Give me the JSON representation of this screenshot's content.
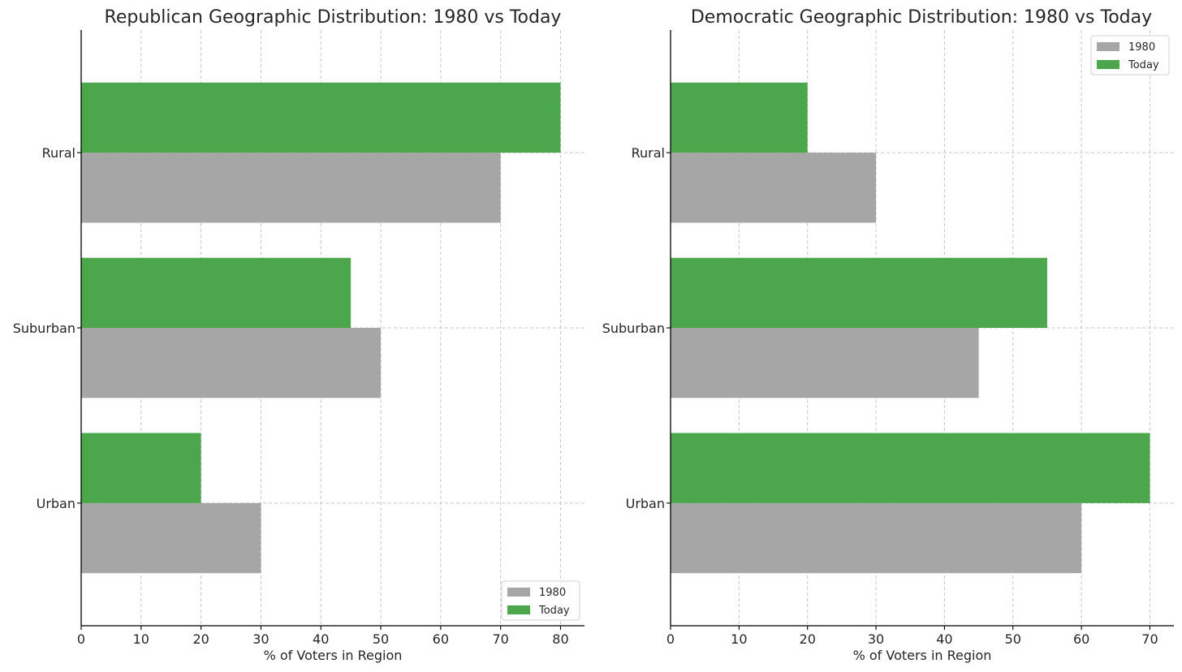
{
  "chart_data": [
    {
      "type": "bar",
      "orientation": "horizontal",
      "title": "Republican Geographic Distribution: 1980 vs Today",
      "xlabel": "% of Voters in Region",
      "ylabel": "",
      "categories": [
        "Urban",
        "Suburban",
        "Rural"
      ],
      "series": [
        {
          "name": "1980",
          "color": "#a6a6a6",
          "values": [
            30,
            50,
            70
          ]
        },
        {
          "name": "Today",
          "color": "#4ca64c",
          "values": [
            20,
            45,
            80
          ]
        }
      ],
      "xlim": [
        0,
        84
      ],
      "xticks": [
        0,
        10,
        20,
        30,
        40,
        50,
        60,
        70,
        80
      ],
      "grid": true,
      "legend": "lower-right"
    },
    {
      "type": "bar",
      "orientation": "horizontal",
      "title": "Democratic Geographic Distribution: 1980 vs Today",
      "xlabel": "% of Voters in Region",
      "ylabel": "",
      "categories": [
        "Urban",
        "Suburban",
        "Rural"
      ],
      "series": [
        {
          "name": "1980",
          "color": "#a6a6a6",
          "values": [
            60,
            45,
            30
          ]
        },
        {
          "name": "Today",
          "color": "#4ca64c",
          "values": [
            70,
            55,
            20
          ]
        }
      ],
      "xlim": [
        0,
        73.5
      ],
      "xticks": [
        0,
        10,
        20,
        30,
        40,
        50,
        60,
        70
      ],
      "grid": true,
      "legend": "upper-right"
    }
  ]
}
